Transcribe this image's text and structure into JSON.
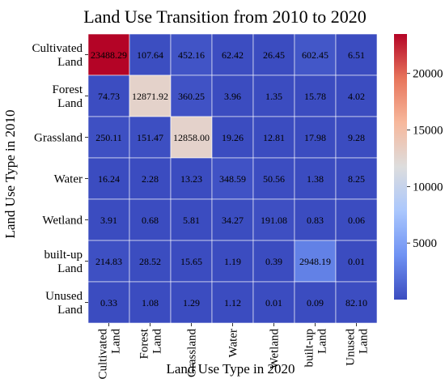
{
  "chart_data": {
    "type": "heatmap",
    "title": "Land Use Transition from 2010 to 2020",
    "xlabel": "Land Use Type in 2020",
    "ylabel": "Land Use Type in 2010",
    "row_labels": [
      [
        "Cultivated",
        "Land"
      ],
      [
        "Forest",
        "Land"
      ],
      [
        "Grassland"
      ],
      [
        "Water"
      ],
      [
        "Wetland"
      ],
      [
        "built-up",
        "Land"
      ],
      [
        "Unused",
        "Land"
      ]
    ],
    "col_labels": [
      [
        "Cultivated",
        "Land"
      ],
      [
        "Forest",
        "Land"
      ],
      [
        "Grassland"
      ],
      [
        "Water"
      ],
      [
        "Wetland"
      ],
      [
        "built-up",
        "Land"
      ],
      [
        "Unused",
        "Land"
      ]
    ],
    "values": [
      [
        23488.29,
        107.64,
        452.16,
        62.42,
        26.45,
        602.45,
        6.51
      ],
      [
        74.73,
        12871.92,
        360.25,
        3.96,
        1.35,
        15.78,
        4.02
      ],
      [
        250.11,
        151.47,
        12858.0,
        19.26,
        12.81,
        17.98,
        9.28
      ],
      [
        16.24,
        2.28,
        13.23,
        348.59,
        50.56,
        1.38,
        8.25
      ],
      [
        3.91,
        0.68,
        5.81,
        34.27,
        191.08,
        0.83,
        0.06
      ],
      [
        214.83,
        28.52,
        15.65,
        1.19,
        0.39,
        2948.19,
        0.01
      ],
      [
        0.33,
        1.08,
        1.29,
        1.12,
        0.01,
        0.09,
        82.1
      ]
    ],
    "value_labels": [
      [
        "23488.29",
        "107.64",
        "452.16",
        "62.42",
        "26.45",
        "602.45",
        "6.51"
      ],
      [
        "74.73",
        "12871.92",
        "360.25",
        "3.96",
        "1.35",
        "15.78",
        "4.02"
      ],
      [
        "250.11",
        "151.47",
        "12858.00",
        "19.26",
        "12.81",
        "17.98",
        "9.28"
      ],
      [
        "16.24",
        "2.28",
        "13.23",
        "348.59",
        "50.56",
        "1.38",
        "8.25"
      ],
      [
        "3.91",
        "0.68",
        "5.81",
        "34.27",
        "191.08",
        "0.83",
        "0.06"
      ],
      [
        "214.83",
        "28.52",
        "15.65",
        "1.19",
        "0.39",
        "2948.19",
        "0.01"
      ],
      [
        "0.33",
        "1.08",
        "1.29",
        "1.12",
        "0.01",
        "0.09",
        "82.10"
      ]
    ],
    "colorbar": {
      "colormap": "coolwarm",
      "range": [
        0,
        23488.29
      ],
      "ticks": [
        5000,
        10000,
        15000,
        20000
      ],
      "tick_labels": [
        "5000",
        "10000",
        "15000",
        "20000"
      ]
    },
    "colors": [
      "#3b4cc0",
      "#6f92f3",
      "#aac7fd",
      "#dddddd",
      "#f7b89c",
      "#e7745b",
      "#b40426"
    ]
  }
}
